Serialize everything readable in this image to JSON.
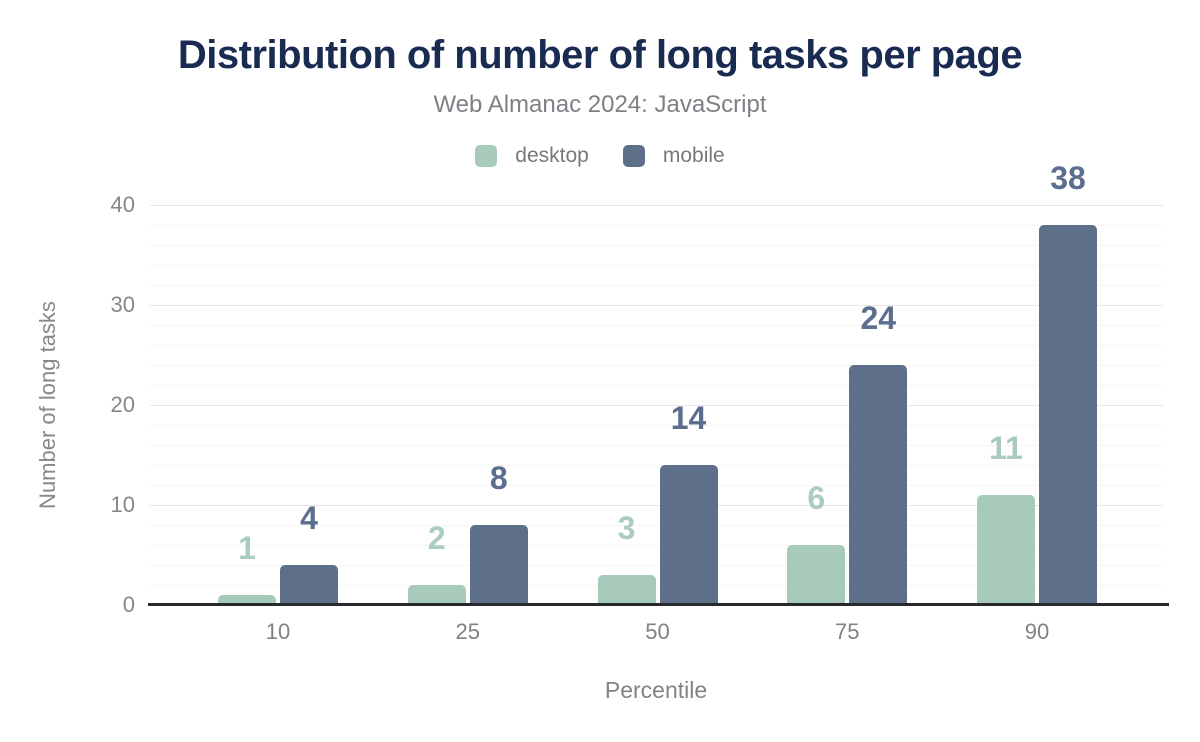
{
  "header": {
    "title": "Distribution of number of long tasks per page",
    "subtitle": "Web Almanac 2024: JavaScript"
  },
  "chart_data": {
    "type": "bar",
    "title": "Distribution of number of long tasks per page",
    "subtitle": "Web Almanac 2024: JavaScript",
    "categories": [
      "10",
      "25",
      "50",
      "75",
      "90"
    ],
    "series": [
      {
        "name": "desktop",
        "color": "#a8caba",
        "label_color": "#a9ccbc",
        "values": [
          1,
          2,
          3,
          6,
          11
        ]
      },
      {
        "name": "mobile",
        "color": "#5e7089",
        "label_color": "#5b6e8e",
        "values": [
          4,
          8,
          14,
          24,
          38
        ]
      }
    ],
    "xlabel": "Percentile",
    "ylabel": "Number of long tasks",
    "ylim": [
      0,
      40
    ],
    "yticks": [
      0,
      10,
      20,
      30,
      40
    ],
    "major_grid_step": 10,
    "minor_grid_step": 2,
    "grid": true,
    "data_labels": true,
    "legend_position": "top"
  },
  "colors": {
    "title": "#1a2b51",
    "subtitle": "#7d8185",
    "axis_text": "#7e8286",
    "baseline": "#28292d",
    "major_grid": "#e7e7e7",
    "minor_grid": "#f5f5f5",
    "background": "#ffffff"
  }
}
